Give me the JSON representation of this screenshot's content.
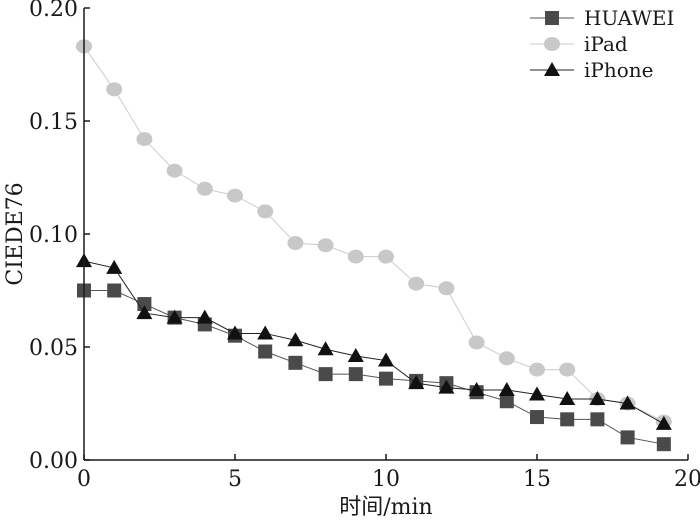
{
  "chart_data": {
    "type": "line",
    "title": "",
    "xlabel": "时间/min",
    "ylabel": "CIEDE76",
    "xlim": [
      0,
      20
    ],
    "ylim": [
      0,
      0.2
    ],
    "xticks": [
      0,
      5,
      10,
      15,
      20
    ],
    "xtick_labels": [
      "0",
      "5",
      "10",
      "15",
      "20"
    ],
    "yticks": [
      0,
      0.05,
      0.1,
      0.15,
      0.2
    ],
    "ytick_labels": [
      "0.00",
      "0.05",
      "0.10",
      "0.15",
      "0.20"
    ],
    "grid": false,
    "legend_position": "top-right",
    "series": [
      {
        "name": "HUAWEI",
        "marker": "square",
        "marker_color": "#4a4a4a",
        "line_color": "#555555",
        "x": [
          0,
          1,
          2,
          3,
          4,
          5,
          6,
          7,
          8,
          9,
          10,
          11,
          12,
          13,
          14,
          15,
          16,
          17,
          18,
          19.2
        ],
        "y": [
          0.075,
          0.075,
          0.069,
          0.063,
          0.06,
          0.055,
          0.048,
          0.043,
          0.038,
          0.038,
          0.036,
          0.035,
          0.034,
          0.03,
          0.026,
          0.019,
          0.018,
          0.018,
          0.01,
          0.007
        ]
      },
      {
        "name": "iPad",
        "marker": "circle",
        "marker_color": "#c8c8c8",
        "line_color": "#cccccc",
        "x": [
          0,
          1,
          2,
          3,
          4,
          5,
          6,
          7,
          8,
          9,
          10,
          11,
          12,
          13,
          14,
          15,
          16,
          17,
          18,
          19.2
        ],
        "y": [
          0.183,
          0.164,
          0.142,
          0.128,
          0.12,
          0.117,
          0.11,
          0.096,
          0.095,
          0.09,
          0.09,
          0.078,
          0.076,
          0.052,
          0.045,
          0.04,
          0.04,
          0.027,
          0.025,
          0.017
        ]
      },
      {
        "name": "iPhone",
        "marker": "triangle",
        "marker_color": "#111111",
        "line_color": "#222222",
        "x": [
          0,
          1,
          2,
          3,
          4,
          5,
          6,
          7,
          8,
          9,
          10,
          11,
          12,
          13,
          14,
          15,
          16,
          17,
          18,
          19.2
        ],
        "y": [
          0.088,
          0.085,
          0.065,
          0.063,
          0.063,
          0.056,
          0.056,
          0.053,
          0.049,
          0.046,
          0.044,
          0.034,
          0.032,
          0.031,
          0.031,
          0.029,
          0.027,
          0.027,
          0.025,
          0.016
        ]
      }
    ]
  }
}
